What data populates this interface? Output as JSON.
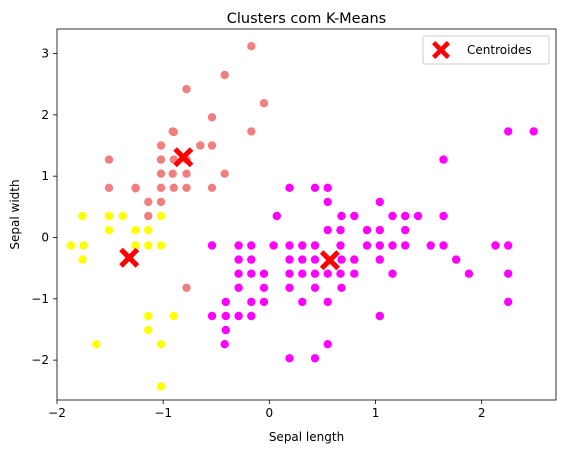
{
  "chart_data": {
    "type": "scatter",
    "title": "Clusters com K-Means",
    "xlabel": "Sepal length",
    "ylabel": "Sepal width",
    "xlim": [
      -2.0,
      2.7
    ],
    "ylim": [
      -2.65,
      3.4
    ],
    "xticks": [
      -2,
      -1,
      0,
      1,
      2
    ],
    "yticks": [
      -2,
      -1,
      0,
      1,
      2,
      3
    ],
    "grid": false,
    "legend": {
      "placement": "top-right",
      "entries": [
        "Centroides"
      ]
    },
    "series": [
      {
        "color": "#f08080",
        "points": [
          [
            -0.17,
            3.12
          ],
          [
            -0.42,
            2.65
          ],
          [
            -0.78,
            2.42
          ],
          [
            -0.05,
            2.19
          ],
          [
            -0.54,
            1.96
          ],
          [
            -0.91,
            1.73
          ],
          [
            -0.9,
            1.72
          ],
          [
            -0.17,
            1.73
          ],
          [
            -1.02,
            1.5
          ],
          [
            -0.65,
            1.5
          ],
          [
            -0.54,
            1.5
          ],
          [
            -0.9,
            1.27
          ],
          [
            -1.51,
            1.27
          ],
          [
            -1.02,
            1.27
          ],
          [
            -0.78,
            1.27
          ],
          [
            -0.91,
            1.04
          ],
          [
            -1.02,
            1.04
          ],
          [
            -0.78,
            1.04
          ],
          [
            -0.42,
            1.04
          ],
          [
            -0.9,
            0.81
          ],
          [
            -1.51,
            0.81
          ],
          [
            -1.26,
            0.81
          ],
          [
            -1.02,
            0.81
          ],
          [
            -0.78,
            0.81
          ],
          [
            -0.54,
            0.81
          ],
          [
            -1.14,
            0.58
          ],
          [
            -1.02,
            0.58
          ],
          [
            -1.26,
            0.8
          ],
          [
            -1.14,
            0.35
          ],
          [
            -0.78,
            -0.82
          ]
        ]
      },
      {
        "color": "#ffff00",
        "points": [
          [
            -1.76,
            0.35
          ],
          [
            -1.51,
            0.35
          ],
          [
            -1.38,
            0.35
          ],
          [
            -1.02,
            0.35
          ],
          [
            -1.51,
            0.12
          ],
          [
            -1.26,
            0.12
          ],
          [
            -1.14,
            0.12
          ],
          [
            -1.87,
            -0.13
          ],
          [
            -1.75,
            -0.13
          ],
          [
            -1.26,
            -0.13
          ],
          [
            -1.14,
            -0.13
          ],
          [
            -1.02,
            -0.13
          ],
          [
            -1.76,
            -0.36
          ],
          [
            -1.14,
            -1.28
          ],
          [
            -0.9,
            -1.28
          ],
          [
            -1.14,
            -1.51
          ],
          [
            -1.63,
            -1.74
          ],
          [
            -1.02,
            -1.74
          ],
          [
            -1.02,
            -2.43
          ]
        ]
      },
      {
        "color": "#ff00ff",
        "points": [
          [
            2.49,
            1.73
          ],
          [
            2.25,
            1.73
          ],
          [
            1.64,
            1.27
          ],
          [
            0.19,
            0.81
          ],
          [
            0.43,
            0.81
          ],
          [
            0.55,
            0.81
          ],
          [
            0.07,
            0.35
          ],
          [
            0.68,
            0.35
          ],
          [
            0.8,
            0.35
          ],
          [
            0.55,
            0.58
          ],
          [
            1.04,
            0.58
          ],
          [
            1.16,
            0.35
          ],
          [
            1.28,
            0.35
          ],
          [
            1.4,
            0.35
          ],
          [
            1.64,
            0.35
          ],
          [
            0.55,
            0.12
          ],
          [
            0.67,
            0.12
          ],
          [
            0.92,
            0.12
          ],
          [
            1.04,
            0.12
          ],
          [
            1.28,
            0.12
          ],
          [
            -0.54,
            -0.13
          ],
          [
            -0.29,
            -0.13
          ],
          [
            -0.17,
            -0.13
          ],
          [
            0.04,
            -0.13
          ],
          [
            0.19,
            -0.13
          ],
          [
            0.31,
            -0.13
          ],
          [
            0.43,
            -0.13
          ],
          [
            0.67,
            -0.13
          ],
          [
            0.92,
            -0.13
          ],
          [
            1.04,
            -0.13
          ],
          [
            1.16,
            -0.13
          ],
          [
            1.28,
            -0.13
          ],
          [
            1.52,
            -0.13
          ],
          [
            1.64,
            -0.13
          ],
          [
            2.13,
            -0.13
          ],
          [
            2.25,
            -0.13
          ],
          [
            -0.29,
            -0.36
          ],
          [
            -0.17,
            -0.36
          ],
          [
            0.19,
            -0.36
          ],
          [
            0.31,
            -0.36
          ],
          [
            0.43,
            -0.36
          ],
          [
            0.68,
            -0.36
          ],
          [
            0.8,
            -0.36
          ],
          [
            1.04,
            -0.36
          ],
          [
            1.76,
            -0.36
          ],
          [
            -0.29,
            -0.59
          ],
          [
            -0.17,
            -0.59
          ],
          [
            -0.05,
            -0.59
          ],
          [
            0.19,
            -0.59
          ],
          [
            0.31,
            -0.59
          ],
          [
            0.43,
            -0.59
          ],
          [
            0.55,
            -0.59
          ],
          [
            0.67,
            -0.59
          ],
          [
            0.8,
            -0.59
          ],
          [
            1.16,
            -0.59
          ],
          [
            1.88,
            -0.59
          ],
          [
            2.25,
            -0.59
          ],
          [
            -0.29,
            -0.82
          ],
          [
            -0.05,
            -0.82
          ],
          [
            0.19,
            -0.82
          ],
          [
            0.43,
            -0.82
          ],
          [
            0.68,
            -0.82
          ],
          [
            -0.41,
            -1.05
          ],
          [
            -0.17,
            -1.05
          ],
          [
            -0.05,
            -1.05
          ],
          [
            0.31,
            -1.05
          ],
          [
            0.55,
            -1.05
          ],
          [
            2.25,
            -1.05
          ],
          [
            -0.54,
            -1.28
          ],
          [
            -0.41,
            -1.28
          ],
          [
            -0.29,
            -1.28
          ],
          [
            -0.17,
            -1.28
          ],
          [
            1.04,
            -1.28
          ],
          [
            -0.41,
            -1.51
          ],
          [
            -0.42,
            -1.74
          ],
          [
            0.55,
            -1.74
          ],
          [
            0.19,
            -1.97
          ],
          [
            0.43,
            -1.97
          ]
        ]
      }
    ],
    "centroids": {
      "name": "Centroides",
      "color": "#ff0000",
      "points": [
        [
          -0.81,
          1.31
        ],
        [
          -1.32,
          -0.33
        ],
        [
          0.57,
          -0.37
        ]
      ]
    }
  }
}
